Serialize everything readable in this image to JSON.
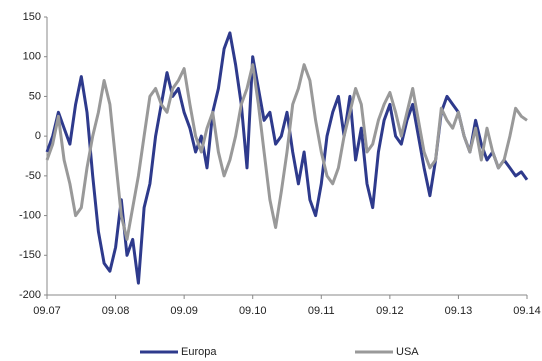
{
  "chart_data": {
    "type": "line",
    "categories": [
      "09.07",
      null,
      null,
      null,
      null,
      null,
      null,
      null,
      null,
      null,
      null,
      null,
      "09.08",
      null,
      null,
      null,
      null,
      null,
      null,
      null,
      null,
      null,
      null,
      null,
      "09.09",
      null,
      null,
      null,
      null,
      null,
      null,
      null,
      null,
      null,
      null,
      null,
      "09.10",
      null,
      null,
      null,
      null,
      null,
      null,
      null,
      null,
      null,
      null,
      null,
      "09.11",
      null,
      null,
      null,
      null,
      null,
      null,
      null,
      null,
      null,
      null,
      null,
      "09.12",
      null,
      null,
      null,
      null,
      null,
      null,
      null,
      null,
      null,
      null,
      null,
      "09.13",
      null,
      null,
      null,
      null,
      null,
      null,
      null,
      null,
      null,
      null,
      null,
      "09.14"
    ],
    "series": [
      {
        "name": "Europa",
        "color": "#2e3a8c",
        "values": [
          -20,
          0,
          30,
          10,
          -10,
          40,
          75,
          30,
          -50,
          -120,
          -160,
          -170,
          -140,
          -80,
          -150,
          -130,
          -185,
          -90,
          -60,
          0,
          40,
          80,
          50,
          60,
          30,
          10,
          -20,
          0,
          -40,
          30,
          60,
          110,
          130,
          90,
          40,
          -40,
          100,
          60,
          20,
          30,
          -10,
          0,
          30,
          -20,
          -60,
          -20,
          -80,
          -100,
          -60,
          0,
          30,
          50,
          0,
          50,
          -30,
          10,
          -60,
          -90,
          -20,
          20,
          40,
          0,
          -10,
          20,
          40,
          0,
          -40,
          -75,
          -30,
          30,
          50,
          40,
          30,
          0,
          -20,
          20,
          -10,
          -30,
          -20,
          -40,
          -30,
          -40,
          -50,
          -45,
          -55
        ]
      },
      {
        "name": "USA",
        "color": "#999999",
        "values": [
          -30,
          -10,
          25,
          -30,
          -60,
          -100,
          -90,
          -40,
          0,
          30,
          70,
          40,
          -30,
          -100,
          -130,
          -90,
          -50,
          0,
          50,
          60,
          40,
          30,
          60,
          70,
          85,
          40,
          0,
          -20,
          10,
          30,
          -20,
          -50,
          -30,
          0,
          40,
          60,
          90,
          40,
          -20,
          -80,
          -115,
          -70,
          -20,
          40,
          60,
          90,
          70,
          20,
          -20,
          -50,
          -60,
          -40,
          0,
          30,
          60,
          40,
          -20,
          -10,
          20,
          40,
          55,
          30,
          0,
          30,
          60,
          20,
          -20,
          -40,
          -30,
          35,
          20,
          10,
          30,
          0,
          -20,
          10,
          -30,
          10,
          -20,
          -40,
          -30,
          0,
          35,
          25,
          20
        ]
      }
    ],
    "ylim": [
      -200,
      150
    ],
    "yticks": [
      -200,
      -150,
      -100,
      -50,
      0,
      50,
      100,
      150
    ],
    "grid": false
  }
}
